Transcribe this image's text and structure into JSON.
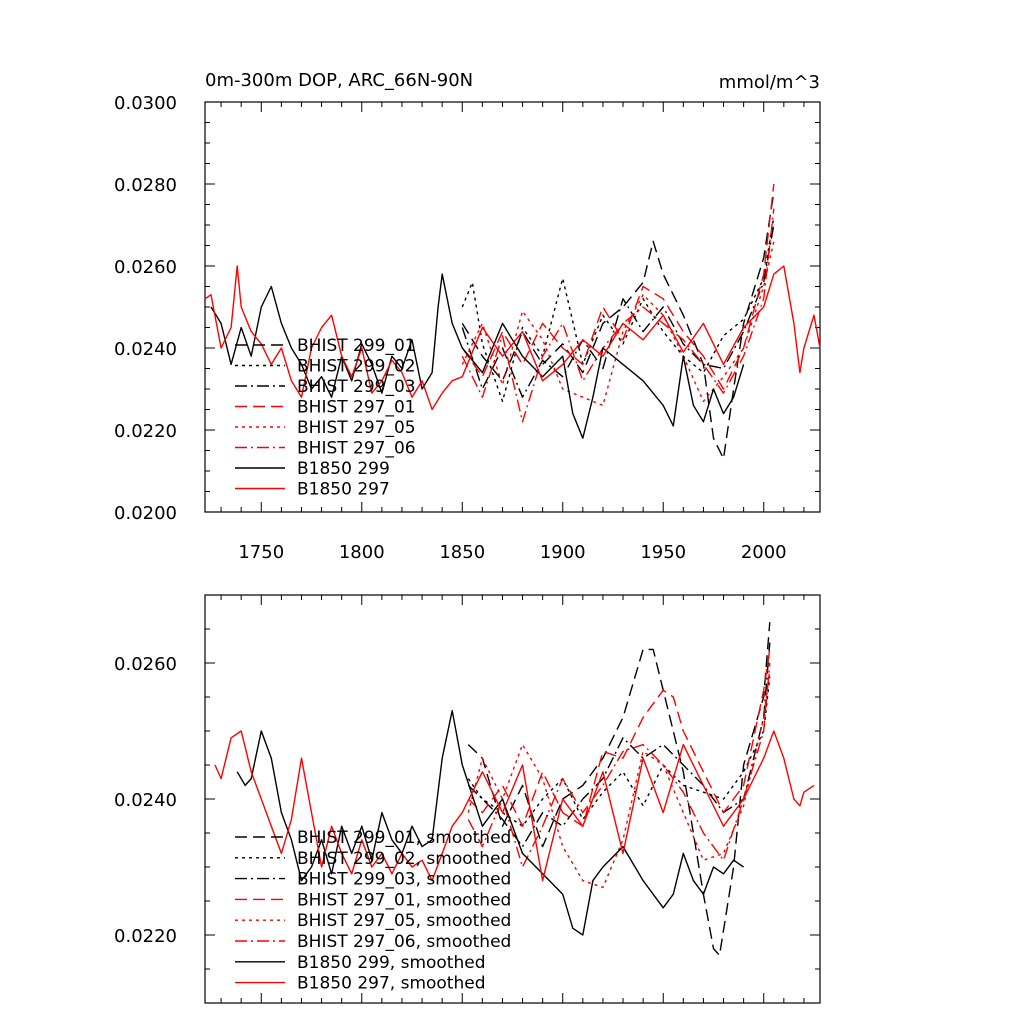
{
  "chart_data": [
    {
      "type": "line",
      "title": "0m-300m DOP, ARC_66N-90N",
      "units": "mmol/m^3",
      "xlim": [
        1722,
        2028
      ],
      "ylim": [
        0.02,
        0.03
      ],
      "xticks": [
        1750,
        1800,
        1850,
        1900,
        1950,
        2000
      ],
      "xtick_labels": [
        "1750",
        "1800",
        "1850",
        "1900",
        "1950",
        "2000"
      ],
      "yticks": [
        0.02,
        0.022,
        0.024,
        0.026,
        0.028,
        0.03
      ],
      "ytick_labels": [
        "0.0200",
        "0.0220",
        "0.0240",
        "0.0260",
        "0.0280",
        "0.0300"
      ],
      "legend_position": "bottom-left",
      "series": [
        {
          "name": "BHIST 299_01",
          "color": "#000000",
          "dash": "dash",
          "x": [
            1850,
            1860,
            1870,
            1880,
            1890,
            1900,
            1910,
            1920,
            1930,
            1940,
            1945,
            1950,
            1960,
            1970,
            1975,
            1980,
            1985,
            1990,
            2000,
            2005
          ],
          "values": [
            0.0246,
            0.0238,
            0.0232,
            0.0244,
            0.0236,
            0.0241,
            0.0234,
            0.0246,
            0.025,
            0.0256,
            0.0266,
            0.0258,
            0.0248,
            0.0236,
            0.0218,
            0.0213,
            0.023,
            0.0246,
            0.0262,
            0.0278
          ]
        },
        {
          "name": "BHIST 299_02",
          "color": "#000000",
          "dash": "dot",
          "x": [
            1850,
            1855,
            1860,
            1870,
            1880,
            1890,
            1900,
            1910,
            1920,
            1930,
            1940,
            1950,
            1960,
            1970,
            1980,
            1990,
            2000,
            2005
          ],
          "values": [
            0.025,
            0.0256,
            0.0241,
            0.0227,
            0.0245,
            0.0238,
            0.0257,
            0.0236,
            0.0248,
            0.0241,
            0.0252,
            0.0244,
            0.0238,
            0.0234,
            0.0243,
            0.0247,
            0.0257,
            0.0272
          ]
        },
        {
          "name": "BHIST 299_03",
          "color": "#000000",
          "dash": "dashdot",
          "x": [
            1850,
            1860,
            1870,
            1880,
            1890,
            1900,
            1910,
            1920,
            1930,
            1940,
            1950,
            1960,
            1970,
            1980,
            1990,
            2000,
            2005
          ],
          "values": [
            0.0245,
            0.023,
            0.024,
            0.0228,
            0.0237,
            0.0233,
            0.0242,
            0.0235,
            0.0252,
            0.0244,
            0.025,
            0.0241,
            0.0236,
            0.0235,
            0.0244,
            0.0256,
            0.027
          ]
        },
        {
          "name": "BHIST 297_01",
          "color": "#ff0000",
          "dash": "dash",
          "x": [
            1850,
            1860,
            1870,
            1880,
            1890,
            1900,
            1910,
            1920,
            1930,
            1940,
            1950,
            1960,
            1970,
            1980,
            1990,
            2000,
            2005
          ],
          "values": [
            0.024,
            0.0233,
            0.0244,
            0.0236,
            0.0246,
            0.024,
            0.0236,
            0.025,
            0.0242,
            0.0255,
            0.0252,
            0.0244,
            0.0238,
            0.023,
            0.024,
            0.0258,
            0.028
          ]
        },
        {
          "name": "BHIST 297_05",
          "color": "#ff0000",
          "dash": "dot",
          "x": [
            1850,
            1860,
            1870,
            1880,
            1890,
            1900,
            1910,
            1920,
            1930,
            1940,
            1950,
            1960,
            1970,
            1980,
            1990,
            2000,
            2005
          ],
          "values": [
            0.0236,
            0.0246,
            0.0231,
            0.0249,
            0.0242,
            0.023,
            0.0228,
            0.0226,
            0.0244,
            0.0253,
            0.0248,
            0.0238,
            0.0227,
            0.0233,
            0.024,
            0.0255,
            0.0266
          ]
        },
        {
          "name": "BHIST 297_06",
          "color": "#ff0000",
          "dash": "dashdot",
          "x": [
            1850,
            1860,
            1870,
            1880,
            1890,
            1900,
            1910,
            1920,
            1930,
            1940,
            1950,
            1960,
            1970,
            1980,
            1990,
            2000,
            2005
          ],
          "values": [
            0.0238,
            0.0228,
            0.0243,
            0.0222,
            0.0238,
            0.0246,
            0.0232,
            0.024,
            0.0246,
            0.025,
            0.0246,
            0.0242,
            0.0236,
            0.0229,
            0.0238,
            0.0252,
            0.0274
          ]
        },
        {
          "name": "B1850 299",
          "color": "#000000",
          "dash": "solid",
          "x": [
            1725,
            1730,
            1735,
            1740,
            1745,
            1750,
            1755,
            1760,
            1765,
            1770,
            1775,
            1780,
            1785,
            1790,
            1795,
            1800,
            1805,
            1810,
            1815,
            1820,
            1825,
            1830,
            1835,
            1838,
            1840,
            1845,
            1850,
            1860,
            1870,
            1880,
            1890,
            1900,
            1905,
            1910,
            1915,
            1920,
            1930,
            1940,
            1950,
            1955,
            1960,
            1965,
            1970,
            1975,
            1980,
            1985,
            1990
          ],
          "values": [
            0.025,
            0.0246,
            0.0236,
            0.0245,
            0.0238,
            0.025,
            0.0255,
            0.0246,
            0.024,
            0.0236,
            0.023,
            0.0233,
            0.0228,
            0.0238,
            0.0232,
            0.0241,
            0.0236,
            0.0229,
            0.0238,
            0.0235,
            0.0242,
            0.023,
            0.0234,
            0.025,
            0.0258,
            0.0246,
            0.024,
            0.0234,
            0.0246,
            0.0238,
            0.0233,
            0.0238,
            0.0224,
            0.0218,
            0.0228,
            0.024,
            0.0236,
            0.0232,
            0.0226,
            0.0221,
            0.0238,
            0.0226,
            0.0222,
            0.023,
            0.0224,
            0.0228,
            0.0236
          ]
        },
        {
          "name": "B1850 297",
          "color": "#ff0000",
          "dash": "solid",
          "x": [
            1722,
            1725,
            1730,
            1735,
            1738,
            1740,
            1745,
            1750,
            1755,
            1760,
            1765,
            1770,
            1775,
            1780,
            1785,
            1790,
            1795,
            1800,
            1805,
            1810,
            1815,
            1820,
            1825,
            1830,
            1835,
            1840,
            1845,
            1850,
            1860,
            1870,
            1880,
            1890,
            1900,
            1910,
            1920,
            1930,
            1940,
            1950,
            1960,
            1970,
            1980,
            1990,
            2000,
            2005,
            2010,
            2015,
            2018,
            2020,
            2025,
            2028
          ],
          "values": [
            0.0252,
            0.0253,
            0.024,
            0.0245,
            0.026,
            0.025,
            0.0244,
            0.0241,
            0.0236,
            0.024,
            0.0232,
            0.0228,
            0.024,
            0.0245,
            0.0248,
            0.0238,
            0.0233,
            0.024,
            0.0229,
            0.0232,
            0.0237,
            0.0234,
            0.0228,
            0.0232,
            0.0225,
            0.0229,
            0.0232,
            0.0233,
            0.0245,
            0.0238,
            0.0244,
            0.0232,
            0.0236,
            0.0242,
            0.0238,
            0.0246,
            0.0242,
            0.0248,
            0.0239,
            0.0246,
            0.0236,
            0.0245,
            0.025,
            0.0258,
            0.026,
            0.0246,
            0.0234,
            0.024,
            0.0248,
            0.024
          ]
        }
      ]
    },
    {
      "type": "line",
      "xlim": [
        1722,
        2028
      ],
      "ylim": [
        0.021,
        0.027
      ],
      "xticks": [
        1750,
        1800,
        1850,
        1900,
        1950,
        2000
      ],
      "yticks": [
        0.022,
        0.024,
        0.026
      ],
      "ytick_labels": [
        "0.0220",
        "0.0240",
        "0.0260"
      ],
      "legend_position": "bottom-left",
      "series": [
        {
          "name": "BHIST 299_01, smoothed",
          "color": "#000000",
          "dash": "dash",
          "x": [
            1853,
            1860,
            1870,
            1880,
            1890,
            1900,
            1910,
            1920,
            1930,
            1940,
            1945,
            1950,
            1960,
            1970,
            1975,
            1978,
            1985,
            1990,
            2000,
            2003
          ],
          "values": [
            0.0248,
            0.0246,
            0.0236,
            0.0242,
            0.0233,
            0.024,
            0.0242,
            0.0246,
            0.0252,
            0.0262,
            0.0262,
            0.0256,
            0.0244,
            0.0226,
            0.0218,
            0.0217,
            0.023,
            0.0245,
            0.0255,
            0.0266
          ]
        },
        {
          "name": "BHIST 299_02, smoothed",
          "color": "#000000",
          "dash": "dot",
          "x": [
            1853,
            1860,
            1870,
            1880,
            1890,
            1900,
            1910,
            1920,
            1930,
            1940,
            1950,
            1960,
            1970,
            1980,
            1990,
            2000,
            2003
          ],
          "values": [
            0.0243,
            0.024,
            0.0238,
            0.0236,
            0.024,
            0.0243,
            0.0237,
            0.0241,
            0.0244,
            0.0239,
            0.0245,
            0.0242,
            0.0241,
            0.024,
            0.0244,
            0.025,
            0.0258
          ]
        },
        {
          "name": "BHIST 299_03, smoothed",
          "color": "#000000",
          "dash": "dashdot",
          "x": [
            1853,
            1860,
            1870,
            1880,
            1890,
            1900,
            1910,
            1920,
            1930,
            1940,
            1950,
            1960,
            1970,
            1980,
            1990,
            2000,
            2003
          ],
          "values": [
            0.0242,
            0.024,
            0.0237,
            0.0233,
            0.0238,
            0.0236,
            0.024,
            0.0243,
            0.0249,
            0.0246,
            0.0248,
            0.0245,
            0.0242,
            0.0238,
            0.024,
            0.0252,
            0.0263
          ]
        },
        {
          "name": "BHIST 297_01, smoothed",
          "color": "#ff0000",
          "dash": "dash",
          "x": [
            1853,
            1860,
            1870,
            1880,
            1890,
            1900,
            1910,
            1920,
            1930,
            1940,
            1950,
            1955,
            1960,
            1970,
            1980,
            1990,
            2000,
            2003
          ],
          "values": [
            0.024,
            0.0238,
            0.0242,
            0.0236,
            0.0244,
            0.0238,
            0.0236,
            0.0247,
            0.0246,
            0.0252,
            0.0256,
            0.0255,
            0.025,
            0.0244,
            0.0238,
            0.0242,
            0.0256,
            0.0262
          ]
        },
        {
          "name": "BHIST 297_05, smoothed",
          "color": "#ff0000",
          "dash": "dot",
          "x": [
            1853,
            1860,
            1870,
            1880,
            1890,
            1900,
            1910,
            1920,
            1930,
            1940,
            1950,
            1960,
            1970,
            1980,
            1990,
            2000,
            2003
          ],
          "values": [
            0.0238,
            0.0246,
            0.024,
            0.0248,
            0.0243,
            0.0233,
            0.0228,
            0.0227,
            0.0234,
            0.0247,
            0.0245,
            0.0238,
            0.0231,
            0.0232,
            0.0239,
            0.0252,
            0.0259
          ]
        },
        {
          "name": "BHIST 297_06, smoothed",
          "color": "#ff0000",
          "dash": "dashdot",
          "x": [
            1853,
            1860,
            1870,
            1880,
            1890,
            1900,
            1910,
            1920,
            1930,
            1940,
            1950,
            1960,
            1970,
            1980,
            1990,
            2000,
            2003
          ],
          "values": [
            0.0237,
            0.0233,
            0.024,
            0.023,
            0.0236,
            0.0243,
            0.0238,
            0.0242,
            0.0247,
            0.0248,
            0.0245,
            0.0241,
            0.0235,
            0.0231,
            0.024,
            0.025,
            0.026
          ]
        },
        {
          "name": "B1850 299, smoothed",
          "color": "#000000",
          "dash": "solid",
          "x": [
            1738,
            1742,
            1745,
            1750,
            1755,
            1760,
            1765,
            1770,
            1775,
            1780,
            1785,
            1790,
            1795,
            1800,
            1805,
            1810,
            1815,
            1820,
            1825,
            1830,
            1835,
            1840,
            1845,
            1850,
            1860,
            1870,
            1880,
            1890,
            1900,
            1905,
            1910,
            1915,
            1920,
            1930,
            1940,
            1950,
            1955,
            1960,
            1965,
            1970,
            1975,
            1980,
            1985,
            1990
          ],
          "values": [
            0.0244,
            0.0242,
            0.0243,
            0.025,
            0.0246,
            0.0238,
            0.0234,
            0.0228,
            0.023,
            0.0234,
            0.0229,
            0.0236,
            0.0232,
            0.0236,
            0.0231,
            0.0238,
            0.0234,
            0.0232,
            0.0236,
            0.0233,
            0.0234,
            0.0246,
            0.0253,
            0.0245,
            0.0236,
            0.024,
            0.0232,
            0.0229,
            0.0226,
            0.0221,
            0.022,
            0.0228,
            0.023,
            0.0233,
            0.0228,
            0.0224,
            0.0226,
            0.0232,
            0.0228,
            0.0226,
            0.023,
            0.0229,
            0.0231,
            0.023
          ]
        },
        {
          "name": "B1850 297, smoothed",
          "color": "#ff0000",
          "dash": "solid",
          "x": [
            1727,
            1730,
            1735,
            1740,
            1745,
            1750,
            1755,
            1760,
            1765,
            1770,
            1775,
            1780,
            1785,
            1790,
            1795,
            1800,
            1805,
            1810,
            1815,
            1820,
            1825,
            1830,
            1835,
            1840,
            1845,
            1850,
            1860,
            1870,
            1880,
            1890,
            1900,
            1910,
            1920,
            1930,
            1940,
            1950,
            1960,
            1970,
            1980,
            1990,
            2000,
            2005,
            2010,
            2015,
            2018,
            2020,
            2025
          ],
          "values": [
            0.0245,
            0.0243,
            0.0249,
            0.025,
            0.0244,
            0.024,
            0.0236,
            0.0232,
            0.0237,
            0.0246,
            0.0238,
            0.023,
            0.0236,
            0.0232,
            0.0229,
            0.0234,
            0.023,
            0.0232,
            0.0229,
            0.0232,
            0.023,
            0.0231,
            0.0228,
            0.0232,
            0.0236,
            0.0238,
            0.0244,
            0.0238,
            0.0245,
            0.0228,
            0.024,
            0.0236,
            0.0244,
            0.0232,
            0.0246,
            0.0238,
            0.0248,
            0.0242,
            0.0236,
            0.024,
            0.0246,
            0.025,
            0.0246,
            0.024,
            0.0239,
            0.0241,
            0.0242
          ]
        }
      ]
    }
  ]
}
